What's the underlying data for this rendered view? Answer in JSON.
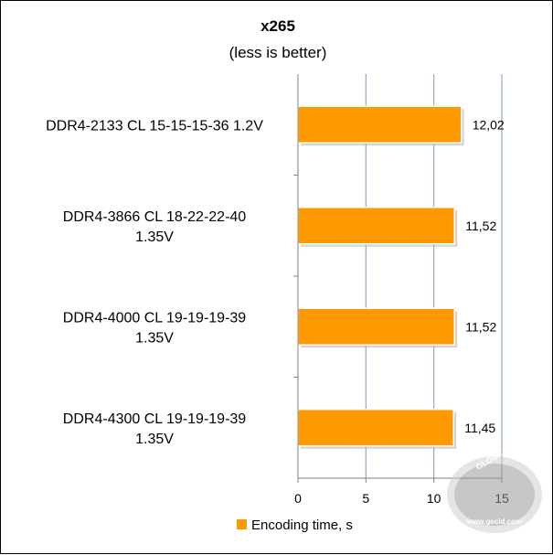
{
  "chart_data": {
    "type": "bar",
    "orientation": "horizontal",
    "title": "x265",
    "subtitle": "(less is better)",
    "categories": [
      [
        "DDR4-2133 CL 15-15-15-36 1.2V"
      ],
      [
        "DDR4-3866 CL 18-22-22-40",
        "1.35V"
      ],
      [
        "DDR4-4000 CL 19-19-19-39",
        "1.35V"
      ],
      [
        "DDR4-4300 CL 19-19-19-39",
        "1.35V"
      ]
    ],
    "series": [
      {
        "name": "Encoding time, s",
        "values": [
          12.02,
          11.52,
          11.52,
          11.45
        ],
        "labels": [
          "12,02",
          "11,52",
          "11,52",
          "11,45"
        ],
        "color": "#FF9900"
      }
    ],
    "xlim": [
      0,
      15
    ],
    "xticks": [
      0,
      5,
      10,
      15
    ],
    "grid": true,
    "legend_position": "bottom"
  },
  "watermark": {
    "brand": "GLOBAL",
    "site": "www.gecid.com"
  }
}
